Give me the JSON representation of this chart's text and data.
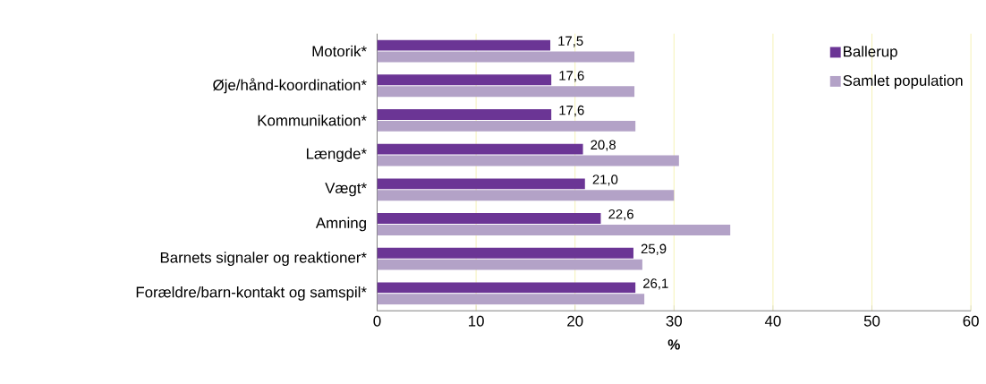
{
  "chart_data": {
    "type": "bar",
    "orientation": "horizontal",
    "xlabel": "%",
    "categories": [
      "Motorik*",
      "Øje/hånd-koordination*",
      "Kommunikation*",
      "Længde*",
      "Vægt*",
      "Amning",
      "Barnets signaler og reaktioner*",
      "Forældre/barn-kontakt og samspil*"
    ],
    "series": [
      {
        "name": "Ballerup",
        "color": "#6b3595",
        "values": [
          17.5,
          17.6,
          17.6,
          20.8,
          21.0,
          22.6,
          25.9,
          26.1
        ],
        "value_labels": [
          "17,5",
          "17,6",
          "17,6",
          "20,8",
          "21,0",
          "22,6",
          "25,9",
          "26,1"
        ]
      },
      {
        "name": "Samlet population",
        "color": "#b3a2c7",
        "values": [
          26.0,
          26.0,
          26.1,
          30.5,
          30.0,
          35.7,
          26.8,
          27.0
        ]
      }
    ],
    "xlim": [
      0,
      60
    ],
    "xticks": [
      0,
      10,
      20,
      30,
      40,
      50,
      60
    ],
    "grid": "x",
    "legend": "top right"
  }
}
